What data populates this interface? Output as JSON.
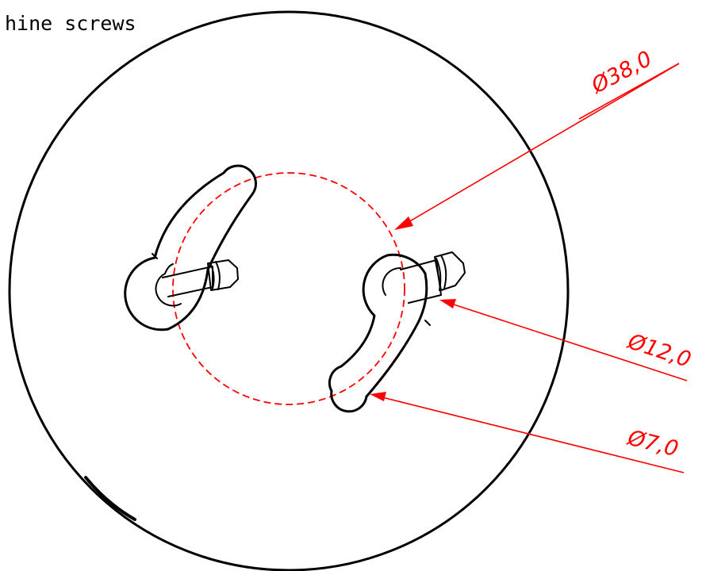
{
  "title_fragment": "hine screws",
  "dimensions": {
    "pitch_circle": "Ø38,0",
    "head_diameter": "Ø12,0",
    "slot_width": "Ø7,0"
  },
  "colors": {
    "geometry": "#000000",
    "dimension": "#ff0000",
    "background": "#ffffff"
  }
}
